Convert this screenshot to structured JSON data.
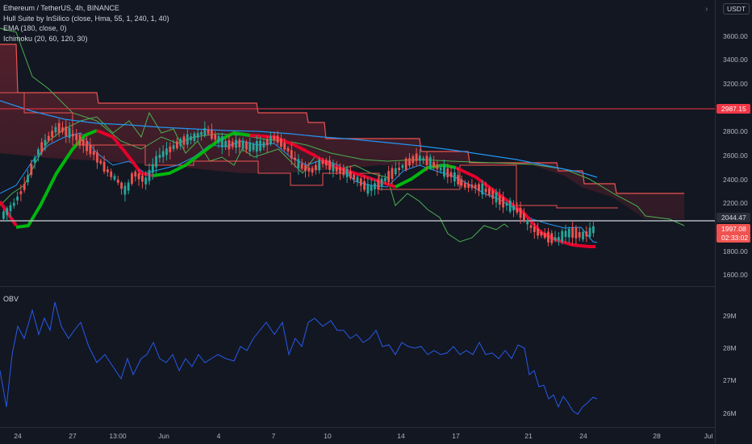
{
  "legend": {
    "symbol": "Ethereum / TetherUS, 4h, BINANCE",
    "hull": "Hull Suite by InSilico (close, Hma, 55, 1, 240, 1, 40)",
    "ema": "EMA (180, close, 0)",
    "ichimoku": "Ichimoku (20, 60, 120, 30)"
  },
  "obv_label": "OBV",
  "currency": "USDT",
  "settings_icon": "chevron-icon",
  "price_axis": [
    "3600.00",
    "3400.00",
    "3200.00",
    "2800.00",
    "2600.00",
    "2400.00",
    "2200.00",
    "1800.00",
    "1600.00"
  ],
  "obv_axis": [
    "29M",
    "28M",
    "27M",
    "26M"
  ],
  "time_axis": [
    "24",
    "27",
    "13:00",
    "Jun",
    "4",
    "7",
    "10",
    "14",
    "17",
    "21",
    "24",
    "28",
    "Jul"
  ],
  "tags": {
    "resistance": "2987.15",
    "horizontal": "2044.47",
    "last_price": "1997.08",
    "countdown": "02:33:02"
  },
  "colors": {
    "background": "#131722",
    "up": "#26a69a",
    "down": "#ef5350",
    "hull_up": "#00b60e",
    "hull_down": "#e4002b",
    "ema": "#2196f3",
    "ichimoku_lagging": "#4caf50",
    "cloud_red": "#f23645"
  }
}
